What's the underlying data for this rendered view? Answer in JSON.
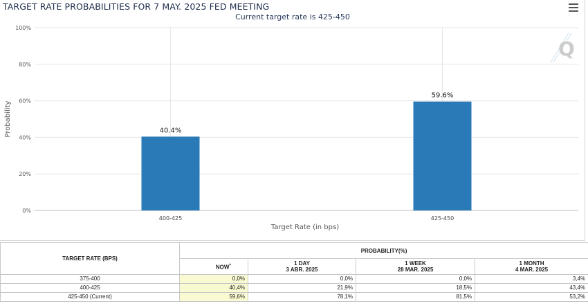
{
  "chart_data": {
    "type": "bar",
    "title": "TARGET RATE PROBABILITIES FOR 7 MAY. 2025 FED MEETING",
    "subtitle": "Current target rate is 425-450",
    "categories": [
      "400-425",
      "425-450"
    ],
    "values": [
      40.4,
      59.6
    ],
    "value_labels": [
      "40.4%",
      "59.6%"
    ],
    "xlabel": "Target Rate (in bps)",
    "ylabel": "Probability",
    "ylim": [
      0,
      100
    ],
    "yticks": [
      "0%",
      "20%",
      "40%",
      "60%",
      "80%",
      "100%"
    ],
    "ytick_values": [
      0,
      20,
      40,
      60,
      80,
      100
    ],
    "grid": true,
    "bar_color": "#2a7ab8"
  },
  "table": {
    "col_rate_header": "TARGET RATE (BPS)",
    "group_header": "PROBABILITY(%)",
    "sub_headers": [
      {
        "line1": "NOW",
        "line2": "",
        "star": "*"
      },
      {
        "line1": "1 DAY",
        "line2": "3 ABR. 2025",
        "star": ""
      },
      {
        "line1": "1 WEEK",
        "line2": "28 MAR. 2025",
        "star": ""
      },
      {
        "line1": "1 MONTH",
        "line2": "4 MAR. 2025",
        "star": ""
      }
    ],
    "rows": [
      {
        "rate": "375-400",
        "values": [
          "0,0%",
          "0,0%",
          "0,0%",
          "3,4%"
        ]
      },
      {
        "rate": "400-425",
        "values": [
          "40,4%",
          "21,9%",
          "18,5%",
          "43,4%"
        ]
      },
      {
        "rate": "425-450 (Current)",
        "values": [
          "59,6%",
          "78,1%",
          "81,5%",
          "53,2%"
        ]
      }
    ]
  },
  "icons": {
    "menu": "hamburger-menu-icon",
    "watermark": "q-logo-icon"
  },
  "colors": {
    "accent": "#2a7ab8",
    "now_highlight": "#fafad2"
  }
}
